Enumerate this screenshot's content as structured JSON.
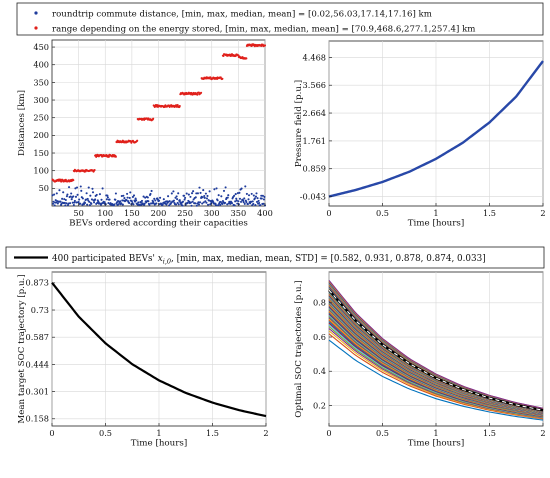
{
  "chart_data": [
    {
      "type": "scatter",
      "xlabel": "BEVs ordered according their capacities",
      "ylabel": "Distances [km]",
      "xlim": [
        0,
        400
      ],
      "ylim": [
        0,
        470
      ],
      "xticks": [
        "50",
        "100",
        "150",
        "200",
        "250",
        "300",
        "350",
        "400"
      ],
      "yticks": [
        "50",
        "100",
        "150",
        "200",
        "250",
        "300",
        "350",
        "400",
        "450"
      ],
      "grid": true,
      "legend_position": "top",
      "series": [
        {
          "name": "roundtrip commute distance, [min, max, median, mean] = [0.02,56.03,17.14,17.16] km",
          "color": "#1f3c9c",
          "marker": "dot",
          "stats": {
            "min": 0.02,
            "max": 56.03,
            "median": 17.14,
            "mean": 17.16
          }
        },
        {
          "name": "range depending on the energy stored, [min, max, median, mean] = [70.9,468.6,277.1,257.4] km",
          "color": "#e0201b",
          "marker": "dot",
          "stats": {
            "min": 70.9,
            "max": 468.6,
            "median": 277.1,
            "mean": 257.4
          },
          "steps": [
            {
              "x": [
                1,
                40
              ],
              "y": 72
            },
            {
              "x": [
                41,
                80
              ],
              "y": 100
            },
            {
              "x": [
                81,
                120
              ],
              "y": 142
            },
            {
              "x": [
                121,
                160
              ],
              "y": 182
            },
            {
              "x": [
                161,
                190
              ],
              "y": 245
            },
            {
              "x": [
                191,
                240
              ],
              "y": 283
            },
            {
              "x": [
                241,
                280
              ],
              "y": 318
            },
            {
              "x": [
                281,
                320
              ],
              "y": 362
            },
            {
              "x": [
                321,
                350
              ],
              "y": 427
            },
            {
              "x": [
                351,
                365
              ],
              "y": 420
            },
            {
              "x": [
                366,
                400
              ],
              "y": 455
            }
          ]
        }
      ]
    },
    {
      "type": "line",
      "xlabel": "Time [hours]",
      "ylabel": "Pressure field [p.u.]",
      "xlim": [
        0,
        2
      ],
      "ylim": [
        -0.35,
        5.0
      ],
      "xticks": [
        "0",
        "0.5",
        "1",
        "1.5",
        "2"
      ],
      "yticks": [
        "-0.043",
        "0.859",
        "1.761",
        "2.664",
        "3.566",
        "4.468"
      ],
      "grid": true,
      "series": [
        {
          "name": "",
          "color": "#2848a8",
          "x": [
            0,
            0.25,
            0.5,
            0.75,
            1.0,
            1.25,
            1.5,
            1.75,
            2.0
          ],
          "y": [
            -0.043,
            0.17,
            0.43,
            0.76,
            1.18,
            1.7,
            2.36,
            3.2,
            4.35
          ]
        }
      ]
    },
    {
      "type": "line",
      "xlabel": "Time [hours]",
      "ylabel": "Mean target SOC trajectory [p.u.]",
      "xlim": [
        0,
        2
      ],
      "ylim": [
        0.12,
        0.93
      ],
      "xticks": [
        "0",
        "0.5",
        "1",
        "1.5",
        "2"
      ],
      "yticks": [
        "0.158",
        "0.301",
        "0.444",
        "0.587",
        "0.73",
        "0.873"
      ],
      "grid": true,
      "legend_position": "top",
      "series": [
        {
          "name": "400 participated BEVs' ",
          "legend_symbol": "x",
          "legend_sub": "i,0",
          "legend_tail": ", [min, max, median, mean, STD] = [0.582, 0.931, 0.878, 0.874, 0.033]",
          "color": "#000000",
          "x": [
            0,
            0.25,
            0.5,
            0.75,
            1.0,
            1.25,
            1.5,
            1.75,
            2.0
          ],
          "y": [
            0.874,
            0.695,
            0.555,
            0.445,
            0.36,
            0.294,
            0.243,
            0.203,
            0.172
          ]
        }
      ]
    },
    {
      "type": "line",
      "xlabel": "Time [hours]",
      "ylabel": "Optimal SOC trajectories [p.u.]",
      "xlim": [
        0,
        2
      ],
      "ylim": [
        0.08,
        0.98
      ],
      "xticks": [
        "0",
        "0.5",
        "1",
        "1.5",
        "2"
      ],
      "yticks": [
        "0.2",
        "0.4",
        "0.6",
        "0.8"
      ],
      "grid": true,
      "initial_soc_range": [
        0.582,
        0.931
      ],
      "mean_curve": {
        "color": "#ffffff",
        "style": "dashed",
        "x": [
          0,
          0.25,
          0.5,
          0.75,
          1.0,
          1.25,
          1.5,
          1.75,
          2.0
        ],
        "y": [
          0.874,
          0.695,
          0.555,
          0.445,
          0.36,
          0.294,
          0.243,
          0.203,
          0.172
        ]
      },
      "series_colors": [
        "#0072bd",
        "#d95319",
        "#edb120",
        "#7e2f8e",
        "#77ac30",
        "#4dbeee",
        "#a2142f"
      ]
    }
  ]
}
